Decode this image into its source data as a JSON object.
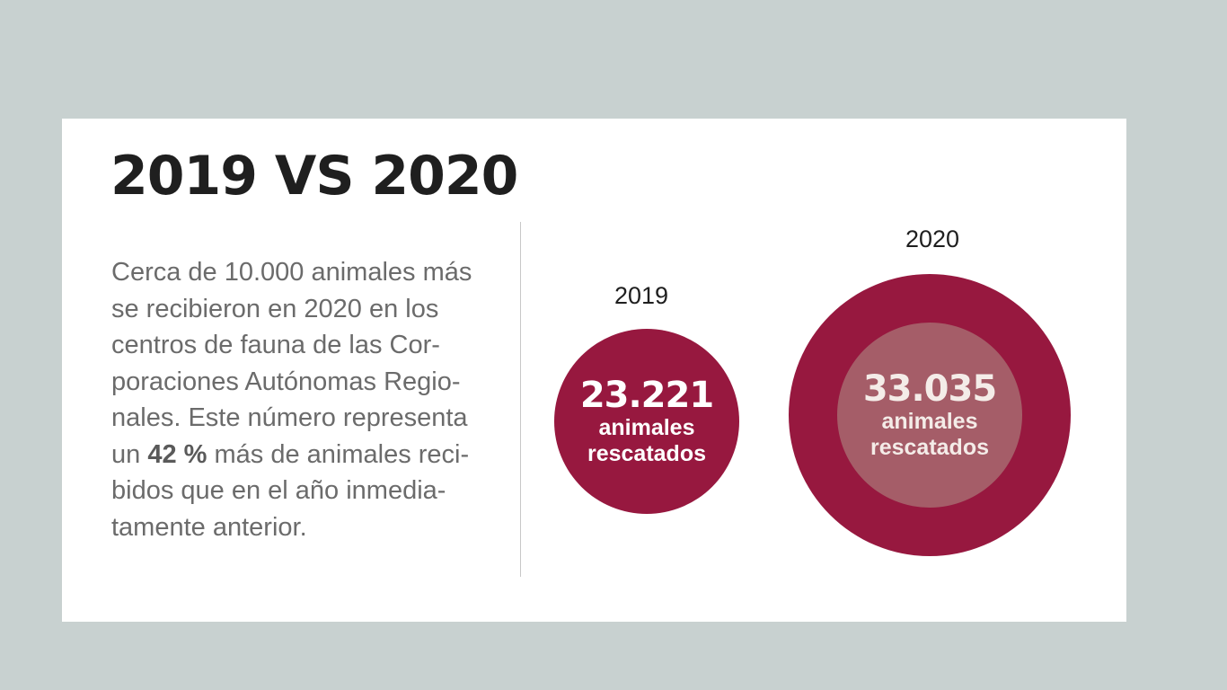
{
  "title": "2019 VS 2020",
  "description": {
    "lines": [
      "Cerca de 10.000 animales más",
      "se recibieron en 2020 en los",
      "centros de fauna  de las Cor-",
      "poraciones Autónomas Regio-",
      "nales. Este número representa"
    ],
    "line6_before": "un ",
    "line6_strong": "42 %",
    "line6_after": " más de animales reci-",
    "lines_end": [
      "bidos que en el año inmedia-",
      "tamente anterior."
    ]
  },
  "stats": [
    {
      "year": "2019",
      "count": "23.221",
      "caption_line1": "animales",
      "caption_line2": "rescatados"
    },
    {
      "year": "2020",
      "count": "33.035",
      "caption_line1": "animales",
      "caption_line2": "rescatados"
    }
  ],
  "colors": {
    "background": "#c8d1d0",
    "card": "#ffffff",
    "accent": "#97183f",
    "accent_light": "#a55d68",
    "title": "#1f1f1f",
    "body_text": "#6b6b6b"
  }
}
